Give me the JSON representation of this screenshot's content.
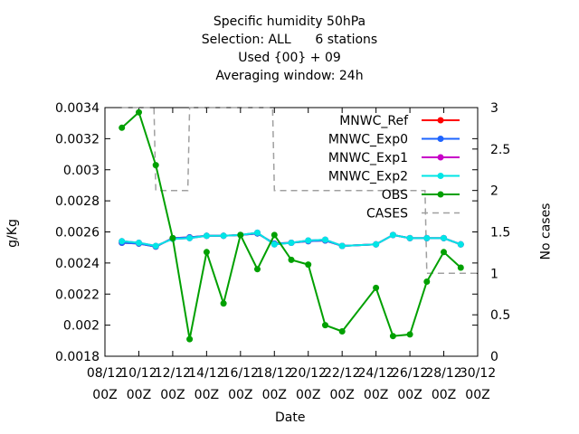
{
  "chart_data": {
    "type": "line",
    "title_lines": [
      "Specific humidity 50hPa",
      "Selection: ALL      6 stations",
      "Used {00} + 09",
      "Averaging window: 24h"
    ],
    "xlabel": "Date",
    "ylabel": "g/Kg",
    "y2label": "No cases",
    "x_ticks": [
      {
        "top": "08/12",
        "bottom": "00Z"
      },
      {
        "top": "10/12",
        "bottom": "00Z"
      },
      {
        "top": "12/12",
        "bottom": "00Z"
      },
      {
        "top": "14/12",
        "bottom": "00Z"
      },
      {
        "top": "16/12",
        "bottom": "00Z"
      },
      {
        "top": "18/12",
        "bottom": "00Z"
      },
      {
        "top": "20/12",
        "bottom": "00Z"
      },
      {
        "top": "22/12",
        "bottom": "00Z"
      },
      {
        "top": "24/12",
        "bottom": "00Z"
      },
      {
        "top": "26/12",
        "bottom": "00Z"
      },
      {
        "top": "28/12",
        "bottom": "00Z"
      },
      {
        "top": "30/12",
        "bottom": "00Z"
      }
    ],
    "xlim_days": [
      8,
      30
    ],
    "ylim": [
      0.0018,
      0.0034
    ],
    "y_ticks": [
      "0.0018",
      "0.002",
      "0.0022",
      "0.0024",
      "0.0026",
      "0.0028",
      "0.003",
      "0.0032",
      "0.0034"
    ],
    "y2lim": [
      0,
      3
    ],
    "y2_ticks": [
      "0",
      "0.5",
      "1",
      "1.5",
      "2",
      "2.5",
      "3"
    ],
    "legend_position": "top-right",
    "series": [
      {
        "name": "MNWC_Ref",
        "color": "#ff0000",
        "axis": "y",
        "x": [
          9,
          10,
          11,
          12,
          13,
          14,
          15,
          16,
          17,
          18,
          19,
          20,
          21,
          22,
          24,
          25,
          26,
          27,
          28,
          29
        ],
        "y": [
          0.00253,
          0.002525,
          0.002505,
          0.00256,
          0.002565,
          0.002575,
          0.002575,
          0.00258,
          0.00259,
          0.002525,
          0.00253,
          0.00254,
          0.002545,
          0.00251,
          0.00252,
          0.00258,
          0.00256,
          0.00256,
          0.00256,
          0.00252
        ]
      },
      {
        "name": "MNWC_Exp0",
        "color": "#1e64ff",
        "axis": "y",
        "x": [
          9,
          10,
          11,
          12,
          13,
          14,
          15,
          16,
          17,
          18,
          19,
          20,
          21,
          22,
          24,
          25,
          26,
          27,
          28,
          29
        ],
        "y": [
          0.00253,
          0.002525,
          0.002505,
          0.00256,
          0.002565,
          0.002575,
          0.002575,
          0.00258,
          0.00259,
          0.002525,
          0.00253,
          0.00254,
          0.002545,
          0.00251,
          0.00252,
          0.00258,
          0.00256,
          0.00256,
          0.00256,
          0.00252
        ]
      },
      {
        "name": "MNWC_Exp1",
        "color": "#c800c8",
        "axis": "y",
        "x": [
          9,
          10,
          11,
          12,
          13,
          14,
          15,
          16,
          17,
          18,
          19,
          20,
          21,
          22,
          24,
          25,
          26,
          27,
          28,
          29
        ],
        "y": [
          0.00254,
          0.00253,
          0.00251,
          0.002555,
          0.00256,
          0.002575,
          0.002575,
          0.00258,
          0.002595,
          0.00252,
          0.00253,
          0.002545,
          0.00255,
          0.00251,
          0.00252,
          0.00258,
          0.00256,
          0.00256,
          0.00256,
          0.00252
        ]
      },
      {
        "name": "MNWC_Exp2",
        "color": "#00e6e6",
        "axis": "y",
        "x": [
          9,
          10,
          11,
          12,
          13,
          14,
          15,
          16,
          17,
          18,
          19,
          20,
          21,
          22,
          24,
          25,
          26,
          27,
          28,
          29
        ],
        "y": [
          0.00254,
          0.00253,
          0.00251,
          0.002555,
          0.00256,
          0.002575,
          0.002575,
          0.00258,
          0.002595,
          0.00252,
          0.00253,
          0.002545,
          0.00255,
          0.00251,
          0.00252,
          0.00258,
          0.00256,
          0.00256,
          0.00256,
          0.00252
        ]
      },
      {
        "name": "OBS",
        "color": "#00a000",
        "axis": "y",
        "x": [
          9,
          10,
          11,
          12,
          13,
          14,
          15,
          16,
          17,
          18,
          19,
          20,
          21,
          22,
          24,
          25,
          26,
          27,
          28,
          29
        ],
        "y": [
          0.00327,
          0.00337,
          0.00303,
          0.00256,
          0.00191,
          0.00247,
          0.00214,
          0.00258,
          0.00236,
          0.00258,
          0.00242,
          0.00239,
          0.002,
          0.00196,
          0.00224,
          0.00193,
          0.00194,
          0.00228,
          0.00247,
          0.00237
        ]
      },
      {
        "name": "CASES",
        "color": "#a0a0a0",
        "axis": "y2",
        "dashed": true,
        "x": [
          9,
          10,
          11,
          12,
          13,
          14,
          15,
          16,
          17,
          18,
          19,
          20,
          21,
          22,
          24,
          25,
          26,
          27,
          28,
          29
        ],
        "y": [
          3,
          3,
          2,
          2,
          3,
          3,
          3,
          3,
          3,
          2,
          2,
          2,
          2,
          2,
          2,
          2,
          2,
          1,
          1,
          1
        ]
      }
    ]
  }
}
